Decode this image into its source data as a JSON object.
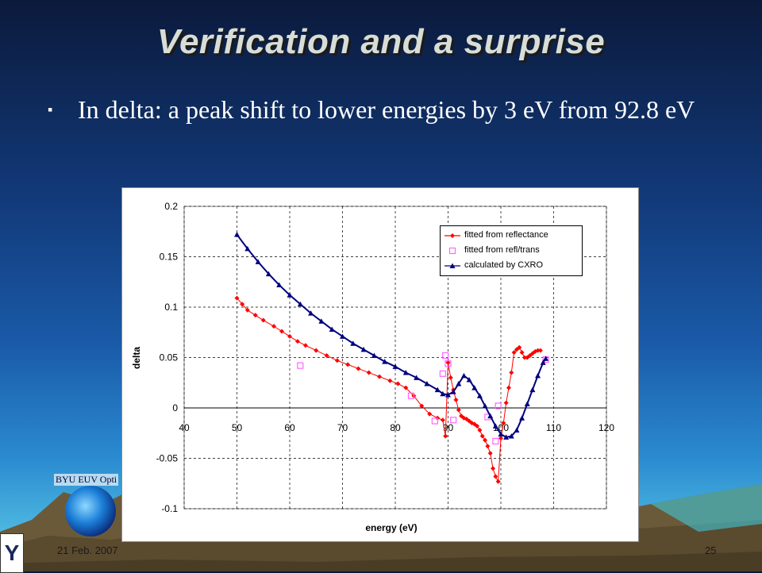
{
  "slide": {
    "title": "Verification and a surprise",
    "bullet_marker": "▪",
    "bullet_text": "In delta: a peak shift to lower energies by 3 eV from 92.8 eV",
    "logo_text": "BYU EUV Opti",
    "footer_date": "21 Feb. 2007",
    "page_number": "25",
    "y_logo_text": "Y"
  },
  "chart_data": {
    "type": "scatter",
    "xlabel": "energy  (eV)",
    "ylabel": "delta",
    "xlim": [
      40,
      120
    ],
    "ylim": [
      -0.1,
      0.2
    ],
    "xticks": [
      40,
      50,
      60,
      70,
      80,
      90,
      100,
      110,
      120
    ],
    "yticks": [
      -0.1,
      -0.05,
      0,
      0.05,
      0.1,
      0.15,
      0.2
    ],
    "xtick_labels": [
      "40",
      "50",
      "60",
      "70",
      "80",
      "90",
      "100",
      "110",
      "120"
    ],
    "ytick_labels": [
      "-0.1",
      "-0.05",
      "0",
      "0.05",
      "0.1",
      "0.15",
      "0.2"
    ],
    "grid": "dashed",
    "legend_position": "top-right",
    "series": [
      {
        "name": "fitted from reflectance",
        "color": "#ff0000",
        "marker": "diamond",
        "line": true,
        "x": [
          50,
          51,
          52,
          53.5,
          55,
          57,
          58.5,
          60,
          61.5,
          63,
          65,
          67,
          69,
          71,
          73,
          75,
          77,
          79,
          80.5,
          82,
          83.5,
          85,
          86.5,
          88,
          89,
          89.5,
          90,
          90.5,
          91,
          91.5,
          92,
          92.5,
          93,
          93.5,
          94,
          94.5,
          95,
          95.5,
          96,
          96.5,
          97,
          97.5,
          98,
          98.5,
          99,
          99.5,
          100,
          100.5,
          101,
          101.5,
          102,
          102.5,
          103,
          103.5,
          104,
          104.5,
          105,
          105.5,
          106,
          106.5,
          107,
          107.5
        ],
        "y": [
          0.109,
          0.103,
          0.097,
          0.092,
          0.087,
          0.081,
          0.076,
          0.071,
          0.066,
          0.062,
          0.057,
          0.052,
          0.047,
          0.043,
          0.039,
          0.035,
          0.031,
          0.027,
          0.024,
          0.02,
          0.012,
          0.002,
          -0.006,
          -0.01,
          -0.012,
          -0.028,
          0.045,
          0.03,
          0.018,
          0.008,
          -0.002,
          -0.008,
          -0.01,
          -0.011,
          -0.013,
          -0.015,
          -0.016,
          -0.018,
          -0.022,
          -0.028,
          -0.032,
          -0.038,
          -0.045,
          -0.06,
          -0.068,
          -0.073,
          -0.03,
          -0.015,
          0.005,
          0.02,
          0.035,
          0.055,
          0.058,
          0.06,
          0.055,
          0.05,
          0.05,
          0.052,
          0.054,
          0.056,
          0.057,
          0.057
        ]
      },
      {
        "name": "fitted from refl/trans",
        "color": "#ff66ff",
        "marker": "square",
        "line": false,
        "x": [
          62,
          83,
          87.5,
          89,
          89.5,
          90,
          91,
          97.5,
          99,
          99.5,
          108.5
        ],
        "y": [
          0.042,
          0.012,
          -0.013,
          0.034,
          0.052,
          0.044,
          -0.012,
          -0.009,
          -0.033,
          0.002,
          0.048
        ]
      },
      {
        "name": "calculated by CXRO",
        "color": "#000080",
        "marker": "triangle",
        "line": true,
        "x": [
          50,
          52,
          54,
          56,
          58,
          60,
          62,
          64,
          66,
          68,
          70,
          72,
          74,
          76,
          78,
          80,
          82,
          84,
          86,
          88,
          89,
          90,
          91,
          92,
          93,
          94,
          95,
          96,
          97,
          98,
          99,
          100,
          101,
          102,
          103,
          104,
          105,
          106,
          107,
          108,
          108.5
        ],
        "y": [
          0.172,
          0.158,
          0.145,
          0.133,
          0.122,
          0.112,
          0.103,
          0.094,
          0.086,
          0.078,
          0.071,
          0.064,
          0.058,
          0.052,
          0.046,
          0.041,
          0.035,
          0.03,
          0.024,
          0.018,
          0.014,
          0.013,
          0.016,
          0.024,
          0.032,
          0.028,
          0.02,
          0.012,
          0.002,
          -0.008,
          -0.018,
          -0.026,
          -0.029,
          -0.028,
          -0.022,
          -0.01,
          0.004,
          0.018,
          0.032,
          0.045,
          0.049
        ]
      }
    ]
  }
}
